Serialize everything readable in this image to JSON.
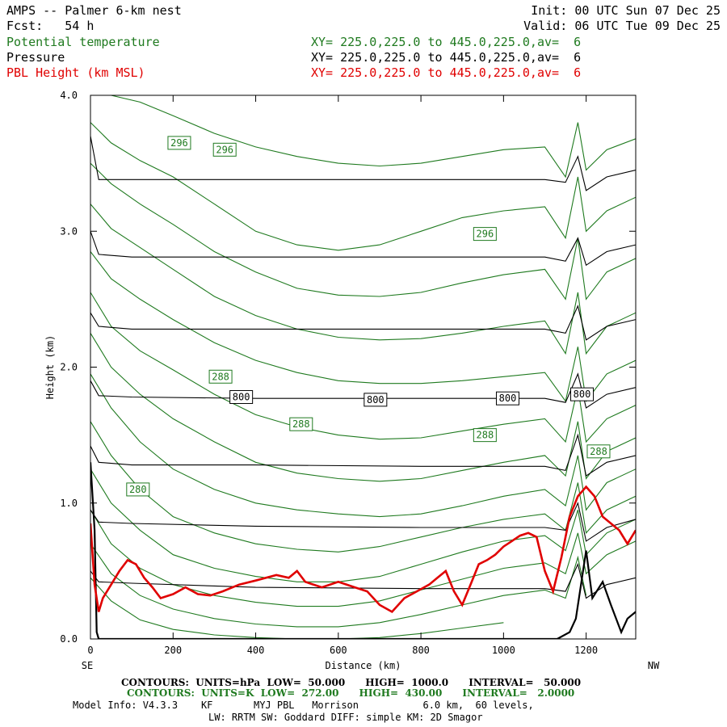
{
  "header": {
    "title": "AMPS -- Palmer 6-km nest",
    "fcst": "Fcst:   54 h",
    "init": "Init: 00 UTC Sun 07 Dec 25",
    "valid": "Valid: 06 UTC Tue 09 Dec 25",
    "fields": [
      {
        "name": "Potential temperature",
        "xy": "XY= 225.0,225.0 to 445.0,225.0,av=  6",
        "color": "#1f7a1f"
      },
      {
        "name": "Pressure",
        "xy": "XY= 225.0,225.0 to 445.0,225.0,av=  6",
        "color": "#000000"
      },
      {
        "name": "PBL Height (km MSL)",
        "xy": "XY= 225.0,225.0 to 445.0,225.0,av=  6",
        "color": "#e00000"
      }
    ]
  },
  "footer": {
    "pressure_contours": "CONTOURS:  UNITS=hPa  LOW=  50.000      HIGH=  1000.0      INTERVAL=   50.000",
    "theta_contours": "CONTOURS:  UNITS=K  LOW=  272.00      HIGH=  430.00      INTERVAL=   2.0000",
    "model_info_1": "Model Info: V4.3.3    KF       MYJ PBL   Morrison           6.0 km,  60 levels,",
    "model_info_2": "LW: RRTM SW: Goddard DIFF: simple KM: 2D Smagor"
  },
  "chart_data": {
    "type": "line",
    "title": "AMPS -- Palmer 6-km nest",
    "xlabel": "Distance (km)",
    "ylabel": "Height (km)",
    "xlim": [
      0,
      1320
    ],
    "ylim": [
      0,
      4.0
    ],
    "xticks": [
      "0",
      "200",
      "400",
      "600",
      "800",
      "1000",
      "1200"
    ],
    "xtick_values": [
      0,
      200,
      400,
      600,
      800,
      1000,
      1200
    ],
    "yticks": [
      "0.0",
      "1.0",
      "2.0",
      "3.0",
      "4.0"
    ],
    "ytick_values": [
      0,
      1,
      2,
      3,
      4
    ],
    "left_end_label": "SE",
    "right_end_label": "NW",
    "pressure_isobars": [
      {
        "x": [
          0,
          20,
          100,
          400,
          800,
          1100,
          1150,
          1180,
          1200,
          1250,
          1320
        ],
        "y": [
          3.7,
          3.38,
          3.38,
          3.38,
          3.38,
          3.38,
          3.36,
          3.55,
          3.3,
          3.4,
          3.45
        ]
      },
      {
        "x": [
          0,
          20,
          100,
          400,
          800,
          1100,
          1150,
          1180,
          1200,
          1250,
          1320
        ],
        "y": [
          3.0,
          2.83,
          2.81,
          2.81,
          2.81,
          2.81,
          2.78,
          2.95,
          2.75,
          2.85,
          2.9
        ]
      },
      {
        "x": [
          0,
          20,
          100,
          400,
          800,
          1100,
          1150,
          1180,
          1200,
          1250,
          1320
        ],
        "y": [
          2.4,
          2.3,
          2.28,
          2.28,
          2.28,
          2.28,
          2.25,
          2.45,
          2.2,
          2.3,
          2.35
        ]
      },
      {
        "x": [
          0,
          20,
          100,
          400,
          800,
          1100,
          1150,
          1180,
          1200,
          1250,
          1320
        ],
        "y": [
          1.9,
          1.79,
          1.78,
          1.77,
          1.77,
          1.77,
          1.74,
          1.95,
          1.7,
          1.8,
          1.85
        ]
      },
      {
        "x": [
          0,
          20,
          100,
          400,
          800,
          1100,
          1150,
          1180,
          1200,
          1250,
          1320
        ],
        "y": [
          1.42,
          1.3,
          1.28,
          1.28,
          1.27,
          1.27,
          1.24,
          1.5,
          1.2,
          1.3,
          1.35
        ]
      },
      {
        "x": [
          0,
          20,
          100,
          400,
          800,
          1100,
          1150,
          1180,
          1200,
          1250,
          1320
        ],
        "y": [
          0.95,
          0.86,
          0.85,
          0.83,
          0.82,
          0.82,
          0.8,
          1.0,
          0.72,
          0.82,
          0.88
        ]
      },
      {
        "x": [
          0,
          20,
          100,
          400,
          800,
          1100,
          1150,
          1180,
          1200,
          1250,
          1320
        ],
        "y": [
          0.5,
          0.42,
          0.41,
          0.38,
          0.37,
          0.37,
          0.35,
          0.55,
          0.3,
          0.4,
          0.45
        ]
      }
    ],
    "terrain": {
      "x": [
        0,
        10,
        15,
        20,
        30,
        1130,
        1160,
        1175,
        1185,
        1200,
        1215,
        1240,
        1260,
        1285,
        1300,
        1320
      ],
      "y": [
        1.3,
        0.8,
        0.05,
        0.0,
        0.0,
        0.0,
        0.05,
        0.15,
        0.35,
        0.65,
        0.3,
        0.42,
        0.25,
        0.05,
        0.15,
        0.2
      ]
    },
    "theta_isentropes": [
      {
        "x": [
          0,
          50,
          120,
          200,
          300,
          400,
          500,
          600,
          700,
          800,
          900,
          1000,
          1100,
          1150,
          1180,
          1200,
          1250,
          1320
        ],
        "y": [
          4.05,
          4.0,
          3.95,
          3.85,
          3.72,
          3.62,
          3.55,
          3.5,
          3.48,
          3.5,
          3.55,
          3.6,
          3.62,
          3.4,
          3.8,
          3.45,
          3.6,
          3.68
        ]
      },
      {
        "x": [
          0,
          50,
          120,
          200,
          300,
          400,
          500,
          600,
          700,
          800,
          900,
          1000,
          1100,
          1150,
          1180,
          1200,
          1250,
          1320
        ],
        "y": [
          3.8,
          3.65,
          3.52,
          3.4,
          3.2,
          3.0,
          2.9,
          2.86,
          2.9,
          3.0,
          3.1,
          3.15,
          3.18,
          2.95,
          3.4,
          3.0,
          3.15,
          3.25
        ]
      },
      {
        "x": [
          0,
          50,
          120,
          200,
          300,
          400,
          500,
          600,
          700,
          800,
          900,
          1000,
          1100,
          1150,
          1180,
          1200,
          1250,
          1320
        ],
        "y": [
          3.5,
          3.35,
          3.2,
          3.05,
          2.85,
          2.7,
          2.58,
          2.53,
          2.52,
          2.55,
          2.62,
          2.68,
          2.72,
          2.5,
          2.95,
          2.5,
          2.7,
          2.8
        ]
      },
      {
        "x": [
          0,
          50,
          120,
          200,
          300,
          400,
          500,
          600,
          700,
          800,
          900,
          1000,
          1100,
          1150,
          1180,
          1200,
          1250,
          1320
        ],
        "y": [
          3.2,
          3.02,
          2.88,
          2.72,
          2.52,
          2.38,
          2.28,
          2.22,
          2.2,
          2.21,
          2.25,
          2.3,
          2.34,
          2.1,
          2.55,
          2.1,
          2.3,
          2.4
        ]
      },
      {
        "x": [
          0,
          50,
          120,
          200,
          300,
          400,
          500,
          600,
          700,
          800,
          900,
          1000,
          1100,
          1150,
          1180,
          1200,
          1250,
          1320
        ],
        "y": [
          2.85,
          2.65,
          2.5,
          2.35,
          2.18,
          2.05,
          1.96,
          1.9,
          1.88,
          1.88,
          1.9,
          1.93,
          1.96,
          1.75,
          2.15,
          1.75,
          1.95,
          2.05
        ]
      },
      {
        "x": [
          0,
          50,
          120,
          200,
          300,
          400,
          500,
          600,
          700,
          800,
          900,
          1000,
          1100,
          1150,
          1180,
          1200,
          1250,
          1320
        ],
        "y": [
          2.55,
          2.3,
          2.12,
          1.98,
          1.8,
          1.65,
          1.56,
          1.5,
          1.47,
          1.48,
          1.53,
          1.58,
          1.62,
          1.45,
          1.85,
          1.45,
          1.62,
          1.72
        ]
      },
      {
        "x": [
          0,
          50,
          120,
          200,
          300,
          400,
          500,
          600,
          700,
          800,
          900,
          1000,
          1100,
          1150,
          1180,
          1200,
          1250,
          1320
        ],
        "y": [
          2.25,
          2.0,
          1.8,
          1.62,
          1.45,
          1.3,
          1.22,
          1.18,
          1.16,
          1.18,
          1.24,
          1.3,
          1.35,
          1.2,
          1.6,
          1.18,
          1.38,
          1.48
        ]
      },
      {
        "x": [
          0,
          50,
          120,
          200,
          300,
          400,
          500,
          600,
          700,
          800,
          900,
          1000,
          1100,
          1150,
          1180,
          1200,
          1250,
          1320
        ],
        "y": [
          1.95,
          1.7,
          1.45,
          1.25,
          1.1,
          1.0,
          0.95,
          0.92,
          0.9,
          0.92,
          0.98,
          1.05,
          1.1,
          0.98,
          1.35,
          0.95,
          1.15,
          1.25
        ]
      },
      {
        "x": [
          0,
          50,
          120,
          200,
          300,
          400,
          500,
          600,
          700,
          800,
          900,
          1000,
          1100,
          1150,
          1180,
          1200,
          1250,
          1320
        ],
        "y": [
          1.6,
          1.35,
          1.1,
          0.9,
          0.78,
          0.7,
          0.66,
          0.64,
          0.68,
          0.75,
          0.82,
          0.88,
          0.92,
          0.8,
          1.15,
          0.78,
          0.95,
          1.05
        ]
      },
      {
        "x": [
          0,
          50,
          120,
          200,
          300,
          400,
          500,
          600,
          700,
          800,
          900,
          1000,
          1100,
          1150,
          1180,
          1200,
          1250,
          1320
        ],
        "y": [
          1.25,
          1.0,
          0.8,
          0.62,
          0.52,
          0.46,
          0.42,
          0.42,
          0.46,
          0.55,
          0.64,
          0.72,
          0.76,
          0.65,
          0.95,
          0.62,
          0.78,
          0.88
        ]
      },
      {
        "x": [
          0,
          50,
          120,
          200,
          300,
          400,
          500,
          600,
          700,
          800,
          900,
          1000,
          1100,
          1150,
          1180,
          1200,
          1250,
          1320
        ],
        "y": [
          0.95,
          0.7,
          0.52,
          0.4,
          0.32,
          0.27,
          0.24,
          0.24,
          0.28,
          0.36,
          0.44,
          0.52,
          0.56,
          0.48,
          0.78,
          0.48,
          0.62,
          0.72
        ]
      },
      {
        "x": [
          0,
          50,
          120,
          200,
          300,
          400,
          500,
          600,
          700,
          800,
          900,
          1000,
          1100,
          1150,
          1180,
          1200
        ],
        "y": [
          0.7,
          0.48,
          0.32,
          0.22,
          0.15,
          0.11,
          0.09,
          0.09,
          0.12,
          0.18,
          0.25,
          0.32,
          0.36,
          0.3,
          0.6,
          0.32
        ]
      },
      {
        "x": [
          0,
          50,
          120,
          200,
          300,
          400,
          500,
          600,
          700,
          800,
          900,
          1000
        ],
        "y": [
          0.45,
          0.28,
          0.14,
          0.07,
          0.03,
          0.01,
          0.0,
          0.0,
          0.01,
          0.04,
          0.08,
          0.12
        ]
      }
    ],
    "pbl_height": {
      "x": [
        0,
        10,
        20,
        30,
        50,
        70,
        90,
        110,
        130,
        150,
        170,
        200,
        230,
        260,
        290,
        320,
        360,
        400,
        450,
        480,
        500,
        520,
        560,
        600,
        640,
        670,
        700,
        730,
        760,
        790,
        820,
        840,
        860,
        880,
        900,
        920,
        940,
        960,
        980,
        1000,
        1020,
        1040,
        1060,
        1080,
        1100,
        1120,
        1140,
        1160,
        1180,
        1200,
        1220,
        1240,
        1260,
        1280,
        1300,
        1320
      ],
      "y": [
        0.85,
        0.4,
        0.2,
        0.3,
        0.4,
        0.5,
        0.58,
        0.55,
        0.45,
        0.38,
        0.3,
        0.33,
        0.38,
        0.33,
        0.32,
        0.35,
        0.4,
        0.43,
        0.47,
        0.45,
        0.5,
        0.42,
        0.38,
        0.42,
        0.38,
        0.35,
        0.25,
        0.2,
        0.3,
        0.35,
        0.4,
        0.45,
        0.5,
        0.35,
        0.25,
        0.4,
        0.55,
        0.58,
        0.62,
        0.68,
        0.72,
        0.76,
        0.78,
        0.75,
        0.5,
        0.35,
        0.6,
        0.9,
        1.05,
        1.12,
        1.05,
        0.9,
        0.85,
        0.8,
        0.7,
        0.8
      ]
    },
    "contour_labels": [
      {
        "text": "296",
        "x": 215,
        "y": 3.65,
        "color": "#1f7a1f"
      },
      {
        "text": "296",
        "x": 325,
        "y": 3.6,
        "color": "#1f7a1f"
      },
      {
        "text": "296",
        "x": 955,
        "y": 2.98,
        "color": "#1f7a1f"
      },
      {
        "text": "288",
        "x": 315,
        "y": 1.93,
        "color": "#1f7a1f"
      },
      {
        "text": "288",
        "x": 510,
        "y": 1.58,
        "color": "#1f7a1f"
      },
      {
        "text": "288",
        "x": 955,
        "y": 1.5,
        "color": "#1f7a1f"
      },
      {
        "text": "288",
        "x": 1230,
        "y": 1.38,
        "color": "#1f7a1f"
      },
      {
        "text": "280",
        "x": 115,
        "y": 1.1,
        "color": "#1f7a1f"
      },
      {
        "text": "800",
        "x": 365,
        "y": 1.78,
        "color": "#000000"
      },
      {
        "text": "800",
        "x": 690,
        "y": 1.76,
        "color": "#000000"
      },
      {
        "text": "800",
        "x": 1010,
        "y": 1.77,
        "color": "#000000"
      },
      {
        "text": "800",
        "x": 1190,
        "y": 1.8,
        "color": "#000000"
      }
    ]
  }
}
